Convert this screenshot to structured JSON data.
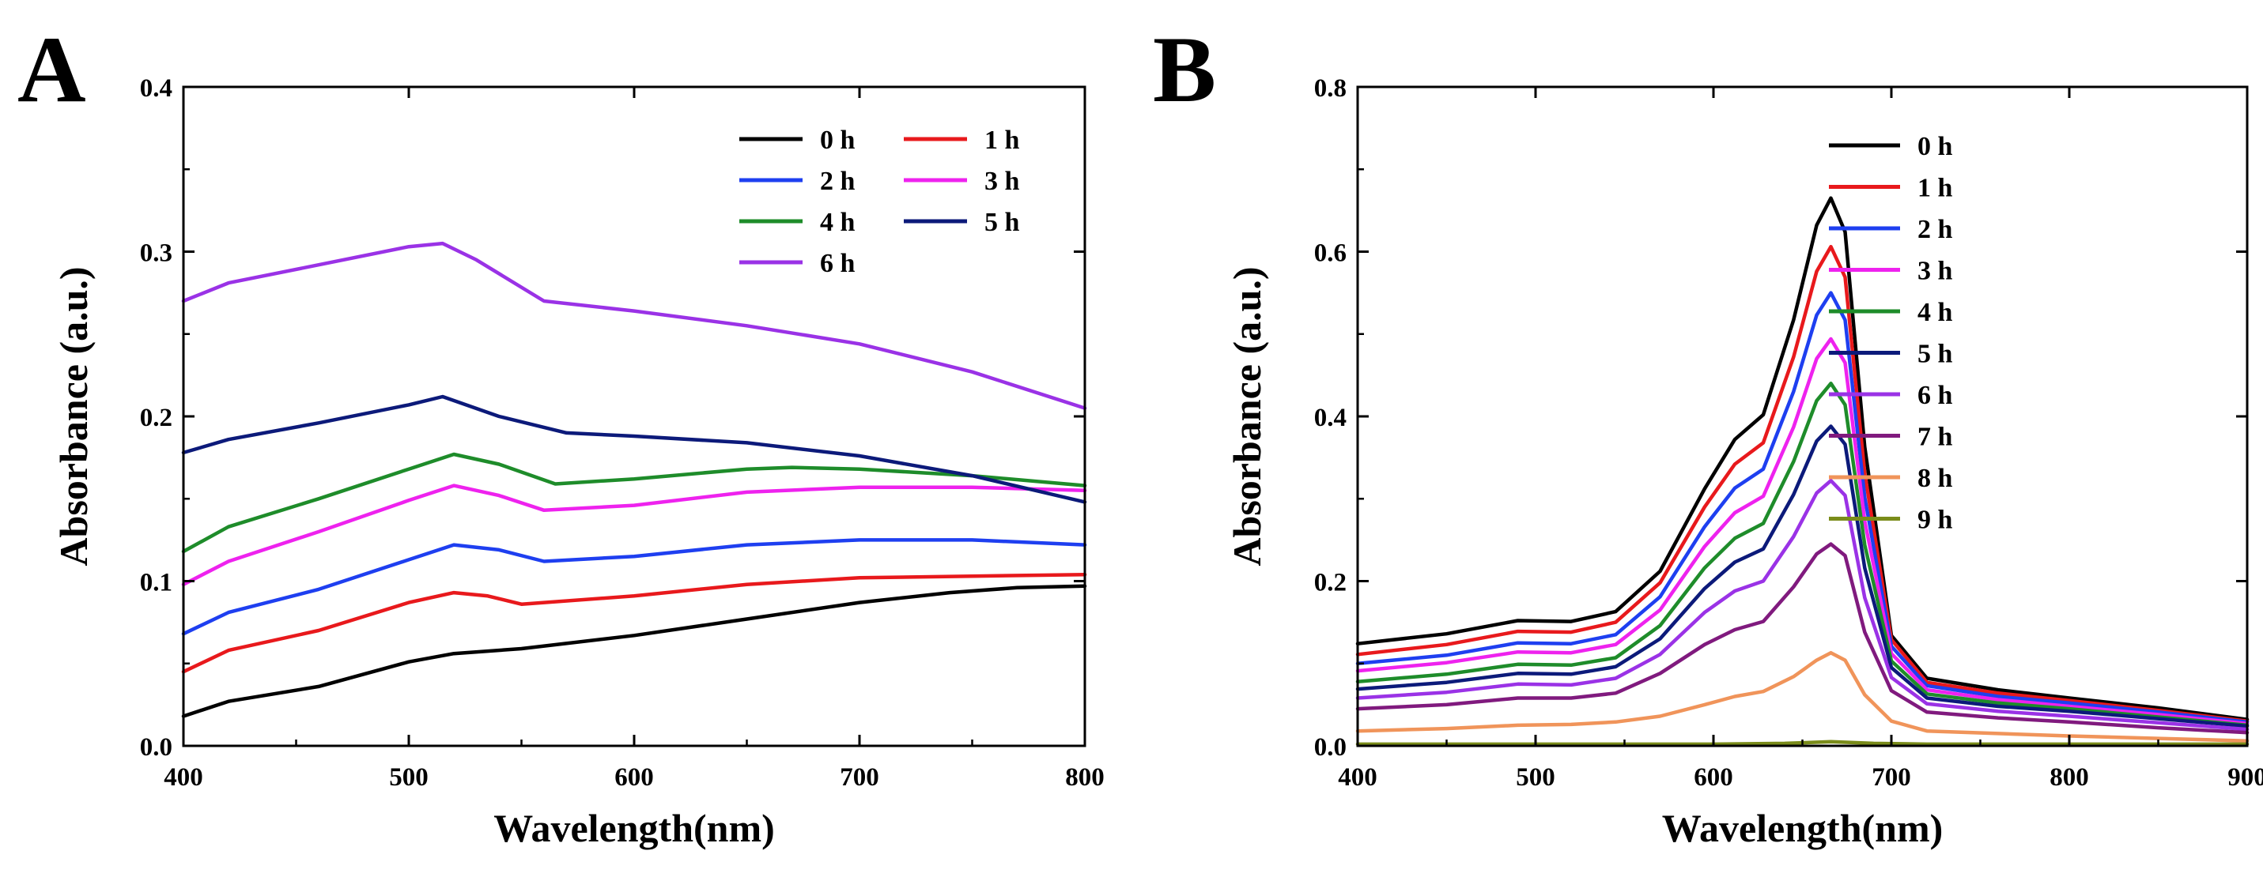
{
  "chart_data": [
    {
      "panel_label": "A",
      "type": "line",
      "xlabel": "Wavelength(nm)",
      "ylabel": "Absorbance (a.u.)",
      "xlim": [
        400,
        800
      ],
      "ylim": [
        0,
        0.4
      ],
      "xticks": [
        400,
        500,
        600,
        700,
        800
      ],
      "yticks": [
        0.0,
        0.1,
        0.2,
        0.3,
        0.4
      ],
      "xtick_labels": [
        "400",
        "500",
        "600",
        "700",
        "800"
      ],
      "ytick_labels": [
        "0.0",
        "0.1",
        "0.2",
        "0.3",
        "0.4"
      ],
      "grid": false,
      "legend_position": "top-right",
      "legend_columns": 2,
      "series": [
        {
          "name": "0 h",
          "color": "#000000",
          "x": [
            400,
            420,
            460,
            500,
            520,
            550,
            600,
            650,
            700,
            740,
            770,
            800
          ],
          "y": [
            0.018,
            0.027,
            0.036,
            0.051,
            0.056,
            0.059,
            0.067,
            0.077,
            0.087,
            0.093,
            0.096,
            0.097
          ]
        },
        {
          "name": "1 h",
          "color": "#e8191c",
          "x": [
            400,
            420,
            460,
            500,
            520,
            535,
            550,
            600,
            650,
            700,
            750,
            800
          ],
          "y": [
            0.045,
            0.058,
            0.07,
            0.087,
            0.093,
            0.091,
            0.086,
            0.091,
            0.098,
            0.102,
            0.103,
            0.104
          ]
        },
        {
          "name": "2 h",
          "color": "#1e3ff0",
          "x": [
            400,
            420,
            460,
            500,
            520,
            540,
            560,
            600,
            650,
            700,
            750,
            800
          ],
          "y": [
            0.068,
            0.081,
            0.095,
            0.113,
            0.122,
            0.119,
            0.112,
            0.115,
            0.122,
            0.125,
            0.125,
            0.122
          ]
        },
        {
          "name": "3 h",
          "color": "#ee22ee",
          "x": [
            400,
            420,
            460,
            500,
            520,
            540,
            560,
            600,
            650,
            700,
            750,
            800
          ],
          "y": [
            0.098,
            0.112,
            0.13,
            0.149,
            0.158,
            0.152,
            0.143,
            0.146,
            0.154,
            0.157,
            0.157,
            0.155
          ]
        },
        {
          "name": "4 h",
          "color": "#1e8c2a",
          "x": [
            400,
            420,
            460,
            500,
            520,
            540,
            565,
            600,
            650,
            670,
            700,
            750,
            800
          ],
          "y": [
            0.118,
            0.133,
            0.15,
            0.168,
            0.177,
            0.171,
            0.159,
            0.162,
            0.168,
            0.169,
            0.168,
            0.164,
            0.158
          ]
        },
        {
          "name": "5 h",
          "color": "#0c1a7a",
          "x": [
            400,
            420,
            460,
            500,
            515,
            540,
            570,
            600,
            650,
            700,
            750,
            800
          ],
          "y": [
            0.178,
            0.186,
            0.196,
            0.207,
            0.212,
            0.2,
            0.19,
            0.188,
            0.184,
            0.176,
            0.164,
            0.148
          ]
        },
        {
          "name": "6 h",
          "color": "#9a32e6",
          "x": [
            400,
            420,
            460,
            500,
            515,
            530,
            560,
            600,
            650,
            700,
            750,
            800
          ],
          "y": [
            0.27,
            0.281,
            0.292,
            0.303,
            0.305,
            0.295,
            0.27,
            0.264,
            0.255,
            0.244,
            0.227,
            0.205
          ]
        }
      ]
    },
    {
      "panel_label": "B",
      "type": "line",
      "xlabel": "Wavelength(nm)",
      "ylabel": "Absorbance (a.u.)",
      "xlim": [
        400,
        900
      ],
      "ylim": [
        0,
        0.8
      ],
      "xticks": [
        400,
        500,
        600,
        700,
        800,
        900
      ],
      "yticks": [
        0.0,
        0.2,
        0.4,
        0.6,
        0.8
      ],
      "xtick_labels": [
        "400",
        "500",
        "600",
        "700",
        "800",
        "900"
      ],
      "ytick_labels": [
        "0.0",
        "0.2",
        "0.4",
        "0.6",
        "0.8"
      ],
      "grid": false,
      "legend_position": "top-right",
      "legend_columns": 1,
      "series": [
        {
          "name": "0 h",
          "color": "#000000",
          "x": [
            400,
            450,
            490,
            520,
            545,
            570,
            595,
            612,
            628,
            645,
            658,
            666,
            674,
            685,
            700,
            720,
            760,
            800,
            850,
            900
          ],
          "y": [
            0.124,
            0.136,
            0.152,
            0.151,
            0.163,
            0.212,
            0.312,
            0.372,
            0.402,
            0.517,
            0.632,
            0.665,
            0.624,
            0.363,
            0.134,
            0.082,
            0.068,
            0.058,
            0.046,
            0.032
          ]
        },
        {
          "name": "1 h",
          "color": "#e8191c",
          "x": [
            400,
            450,
            490,
            520,
            545,
            570,
            595,
            612,
            628,
            645,
            658,
            666,
            674,
            685,
            700,
            720,
            760,
            800,
            850,
            900
          ],
          "y": [
            0.111,
            0.123,
            0.139,
            0.138,
            0.15,
            0.198,
            0.29,
            0.342,
            0.368,
            0.472,
            0.576,
            0.606,
            0.569,
            0.331,
            0.129,
            0.077,
            0.064,
            0.055,
            0.043,
            0.03
          ]
        },
        {
          "name": "2 h",
          "color": "#1e3ff0",
          "x": [
            400,
            450,
            490,
            520,
            545,
            570,
            595,
            612,
            628,
            645,
            658,
            666,
            674,
            685,
            700,
            720,
            760,
            800,
            850,
            900
          ],
          "y": [
            0.1,
            0.11,
            0.125,
            0.124,
            0.135,
            0.181,
            0.266,
            0.313,
            0.336,
            0.43,
            0.523,
            0.55,
            0.517,
            0.302,
            0.121,
            0.073,
            0.06,
            0.052,
            0.041,
            0.029
          ]
        },
        {
          "name": "3 h",
          "color": "#ee22ee",
          "x": [
            400,
            450,
            490,
            520,
            545,
            570,
            595,
            612,
            628,
            645,
            658,
            666,
            674,
            685,
            700,
            720,
            760,
            800,
            850,
            900
          ],
          "y": [
            0.091,
            0.101,
            0.114,
            0.113,
            0.123,
            0.165,
            0.242,
            0.283,
            0.303,
            0.387,
            0.47,
            0.494,
            0.465,
            0.273,
            0.112,
            0.068,
            0.056,
            0.048,
            0.038,
            0.027
          ]
        },
        {
          "name": "4 h",
          "color": "#1e8c2a",
          "x": [
            400,
            450,
            490,
            520,
            545,
            570,
            595,
            612,
            628,
            645,
            658,
            666,
            674,
            685,
            700,
            720,
            760,
            800,
            850,
            900
          ],
          "y": [
            0.078,
            0.087,
            0.099,
            0.098,
            0.107,
            0.146,
            0.216,
            0.252,
            0.27,
            0.345,
            0.419,
            0.44,
            0.414,
            0.244,
            0.103,
            0.063,
            0.052,
            0.045,
            0.035,
            0.025
          ]
        },
        {
          "name": "5 h",
          "color": "#0c1a7a",
          "x": [
            400,
            450,
            490,
            520,
            545,
            570,
            595,
            612,
            628,
            645,
            658,
            666,
            674,
            685,
            700,
            720,
            760,
            800,
            850,
            900
          ],
          "y": [
            0.069,
            0.077,
            0.088,
            0.087,
            0.096,
            0.13,
            0.191,
            0.223,
            0.239,
            0.305,
            0.37,
            0.388,
            0.366,
            0.216,
            0.095,
            0.058,
            0.048,
            0.042,
            0.033,
            0.024
          ]
        },
        {
          "name": "6 h",
          "color": "#9a32e6",
          "x": [
            400,
            450,
            490,
            520,
            545,
            570,
            595,
            612,
            628,
            645,
            658,
            666,
            674,
            685,
            700,
            720,
            760,
            800,
            850,
            900
          ],
          "y": [
            0.058,
            0.065,
            0.075,
            0.074,
            0.082,
            0.111,
            0.162,
            0.188,
            0.2,
            0.254,
            0.307,
            0.322,
            0.304,
            0.18,
            0.083,
            0.051,
            0.042,
            0.036,
            0.028,
            0.02
          ]
        },
        {
          "name": "7 h",
          "color": "#801a7e",
          "x": [
            400,
            450,
            490,
            520,
            545,
            570,
            595,
            612,
            628,
            645,
            658,
            666,
            674,
            685,
            700,
            720,
            760,
            800,
            850,
            900
          ],
          "y": [
            0.045,
            0.05,
            0.058,
            0.058,
            0.064,
            0.088,
            0.123,
            0.141,
            0.151,
            0.193,
            0.233,
            0.245,
            0.231,
            0.138,
            0.067,
            0.041,
            0.034,
            0.029,
            0.022,
            0.016
          ]
        },
        {
          "name": "8 h",
          "color": "#f0945a",
          "x": [
            400,
            450,
            490,
            520,
            545,
            570,
            595,
            612,
            628,
            645,
            658,
            666,
            674,
            685,
            700,
            720,
            760,
            800,
            850,
            900
          ],
          "y": [
            0.018,
            0.021,
            0.025,
            0.026,
            0.029,
            0.036,
            0.05,
            0.06,
            0.066,
            0.084,
            0.104,
            0.113,
            0.104,
            0.062,
            0.03,
            0.018,
            0.015,
            0.012,
            0.009,
            0.006
          ]
        },
        {
          "name": "9 h",
          "color": "#7a8c1a",
          "x": [
            400,
            500,
            600,
            640,
            666,
            690,
            720,
            800,
            900
          ],
          "y": [
            0.002,
            0.002,
            0.002,
            0.003,
            0.005,
            0.003,
            0.002,
            0.002,
            0.002
          ]
        }
      ]
    }
  ]
}
